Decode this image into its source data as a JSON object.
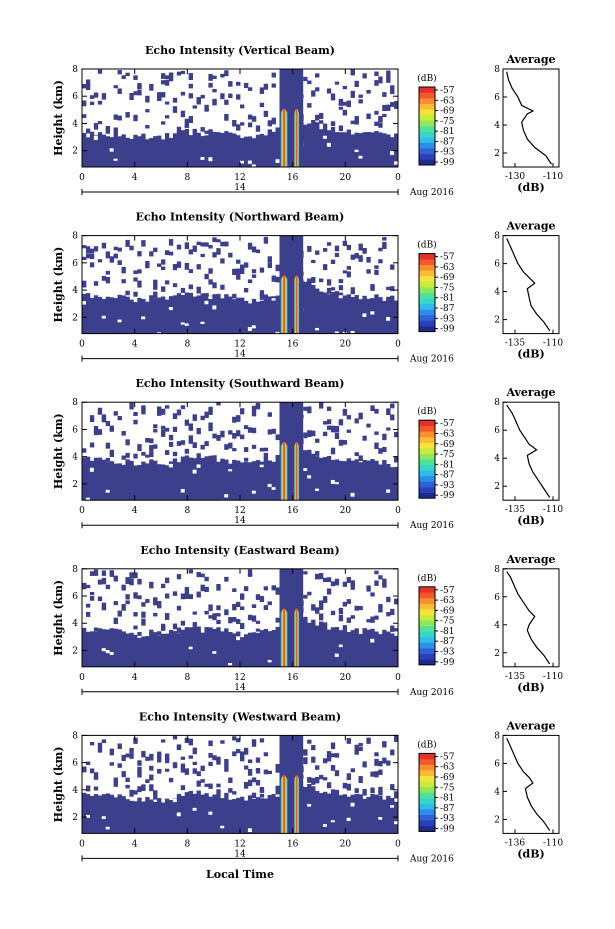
{
  "chart_data": {
    "type": "heatmap",
    "xlabel": "Local Time",
    "date_label": "Aug 2016",
    "date_day": "14",
    "ylabel": "Height (km)",
    "x_ticks": [
      "0",
      "4",
      "8",
      "12",
      "16",
      "20",
      "0"
    ],
    "xlim": [
      0,
      24
    ],
    "y_ticks": [
      "2",
      "4",
      "6",
      "8"
    ],
    "ylim": [
      0.8,
      8
    ],
    "colorbar": {
      "title": "(dB)",
      "tick_labels": [
        "-57",
        "-63",
        "-69",
        "-75",
        "-81",
        "-87",
        "-93",
        "-99"
      ],
      "colors": [
        "#1e2a8e",
        "#2b3fb8",
        "#2e62d9",
        "#2b8ee8",
        "#2fbce8",
        "#36d6c8",
        "#4fe39a",
        "#8ee85a",
        "#c8ec3e",
        "#f3e43a",
        "#fbbb34",
        "#fb8d2e",
        "#f4582a",
        "#e3312a"
      ],
      "background_color": "#3b3f8c"
    },
    "avg_title": "Average",
    "avg_xlabel": "(dB)",
    "avg_ylim": [
      1,
      8
    ],
    "panels": [
      {
        "title": "Echo Intensity (Vertical Beam)",
        "echo_top_km": [
          3.2,
          3.2,
          3.1,
          3.1,
          3.0,
          3.1,
          3.0,
          3.2,
          3.4,
          3.3,
          3.4,
          3.2,
          3.0,
          3.1,
          3.3,
          3.6,
          4.0,
          4.2,
          3.8,
          3.6,
          3.5,
          3.3,
          3.4,
          3.2,
          3.1
        ],
        "avg_ticks": [
          "-130",
          "-110"
        ],
        "avg_xlim": [
          -135,
          -105
        ],
        "avg_profile": {
          "height_km": [
            1.2,
            1.8,
            2.4,
            3.0,
            3.6,
            4.2,
            4.8,
            5.0,
            5.4,
            6.0,
            6.6,
            7.2,
            7.8
          ],
          "db": [
            -109,
            -112,
            -118,
            -122,
            -124,
            -125,
            -122,
            -119,
            -125,
            -127,
            -130,
            -132,
            -133
          ]
        }
      },
      {
        "title": "Echo Intensity (Northward Beam)",
        "echo_top_km": [
          3.6,
          3.5,
          3.5,
          3.4,
          3.3,
          3.4,
          3.3,
          3.5,
          3.7,
          3.6,
          3.6,
          3.5,
          3.2,
          3.3,
          3.5,
          3.8,
          4.3,
          4.4,
          4.0,
          3.8,
          3.7,
          3.5,
          3.6,
          3.4,
          3.3
        ],
        "avg_ticks": [
          "-135",
          "-110"
        ],
        "avg_xlim": [
          -135,
          -105
        ],
        "avg_profile": {
          "height_km": [
            1.2,
            1.8,
            2.4,
            3.0,
            3.6,
            4.2,
            4.6,
            5.0,
            5.4,
            6.0,
            6.6,
            7.2,
            7.8
          ],
          "db": [
            -110,
            -113,
            -117,
            -120,
            -121,
            -122,
            -118,
            -121,
            -124,
            -127,
            -129,
            -131,
            -133
          ]
        }
      },
      {
        "title": "Echo Intensity (Southward Beam)",
        "echo_top_km": [
          3.8,
          3.7,
          3.7,
          3.6,
          3.5,
          3.6,
          3.5,
          3.8,
          4.0,
          3.9,
          3.9,
          3.7,
          3.4,
          3.5,
          3.7,
          4.0,
          4.6,
          4.5,
          4.1,
          3.9,
          3.8,
          3.6,
          3.7,
          3.5,
          3.4
        ],
        "avg_ticks": [
          "-135",
          "-110"
        ],
        "avg_xlim": [
          -135,
          -105
        ],
        "avg_profile": {
          "height_km": [
            1.2,
            1.8,
            2.4,
            3.0,
            3.6,
            4.2,
            4.6,
            5.0,
            5.4,
            6.0,
            6.6,
            7.2,
            7.8
          ],
          "db": [
            -110,
            -113,
            -116,
            -119,
            -121,
            -122,
            -117,
            -121,
            -123,
            -126,
            -128,
            -130,
            -133
          ]
        }
      },
      {
        "title": "Echo Intensity (Eastward Beam)",
        "echo_top_km": [
          3.5,
          3.4,
          3.4,
          3.3,
          3.2,
          3.3,
          3.2,
          3.4,
          3.6,
          3.5,
          3.5,
          3.4,
          3.1,
          3.2,
          3.4,
          3.7,
          4.2,
          4.3,
          3.9,
          3.7,
          3.6,
          3.4,
          3.5,
          3.3,
          3.2
        ],
        "avg_ticks": [
          "-135",
          "-110"
        ],
        "avg_xlim": [
          -135,
          -105
        ],
        "avg_profile": {
          "height_km": [
            1.2,
            1.8,
            2.4,
            3.0,
            3.6,
            4.0,
            4.6,
            5.0,
            5.6,
            6.2,
            6.8,
            7.4,
            7.8
          ],
          "db": [
            -110,
            -113,
            -117,
            -120,
            -122,
            -121,
            -118,
            -121,
            -124,
            -127,
            -129,
            -131,
            -133
          ]
        }
      },
      {
        "title": "Echo Intensity (Westward Beam)",
        "echo_top_km": [
          3.6,
          3.5,
          3.5,
          3.4,
          3.3,
          3.4,
          3.3,
          3.6,
          3.8,
          3.7,
          3.7,
          3.5,
          3.3,
          3.4,
          3.6,
          3.9,
          4.4,
          4.4,
          4.0,
          3.8,
          3.7,
          3.5,
          3.6,
          3.4,
          3.3
        ],
        "avg_ticks": [
          "-136",
          "-110"
        ],
        "avg_xlim": [
          -135,
          -105
        ],
        "avg_profile": {
          "height_km": [
            1.2,
            1.8,
            2.4,
            3.0,
            3.6,
            4.2,
            4.6,
            5.0,
            5.4,
            6.0,
            6.6,
            7.2,
            7.8
          ],
          "db": [
            -110,
            -113,
            -117,
            -120,
            -122,
            -123,
            -119,
            -121,
            -124,
            -127,
            -129,
            -131,
            -133
          ]
        }
      }
    ]
  }
}
